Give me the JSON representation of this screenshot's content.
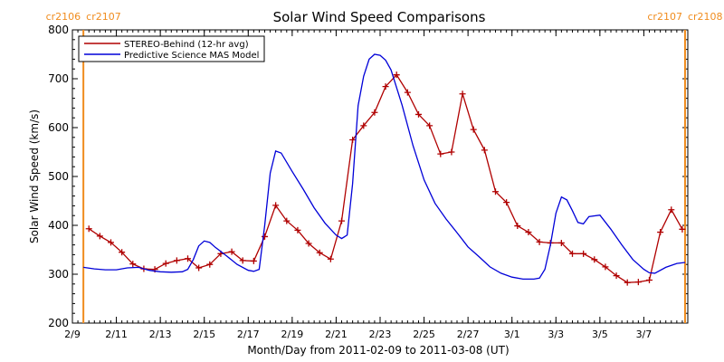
{
  "chart_data": {
    "type": "line",
    "title": "Solar Wind Speed Comparisons",
    "xlabel": "Month/Day from 2011-02-09 to 2011-03-08 (UT)",
    "ylabel": "Solar Wind Speed (km/s)",
    "xlim": [
      "2011-02-09",
      "2011-03-08"
    ],
    "ylim": [
      200,
      800
    ],
    "yticks": [
      200,
      300,
      400,
      500,
      600,
      700,
      800
    ],
    "xtick_labels": [
      {
        "date": "2011-02-09",
        "label": "2/9"
      },
      {
        "date": "2011-02-11",
        "label": "2/11"
      },
      {
        "date": "2011-02-13",
        "label": "2/13"
      },
      {
        "date": "2011-02-15",
        "label": "2/15"
      },
      {
        "date": "2011-02-17",
        "label": "2/17"
      },
      {
        "date": "2011-02-19",
        "label": "2/19"
      },
      {
        "date": "2011-02-21",
        "label": "2/21"
      },
      {
        "date": "2011-02-23",
        "label": "2/23"
      },
      {
        "date": "2011-02-25",
        "label": "2/25"
      },
      {
        "date": "2011-02-27",
        "label": "2/27"
      },
      {
        "date": "2011-03-01",
        "label": "3/1"
      },
      {
        "date": "2011-03-03",
        "label": "3/3"
      },
      {
        "date": "2011-03-05",
        "label": "3/5"
      },
      {
        "date": "2011-03-07",
        "label": "3/7"
      }
    ],
    "legend_position": "top-left",
    "carrington_rotations": [
      {
        "date": "2011-02-09 12:00",
        "left_label": "cr2106",
        "right_label": "cr2107",
        "color": "#f08c1e"
      },
      {
        "date": "2011-03-08 21:00",
        "left_label": "cr2107",
        "right_label": "cr2108",
        "color": "#f08c1e"
      }
    ],
    "series": [
      {
        "name": "STEREO-Behind (12-hr avg)",
        "color": "#b00000",
        "marker": "plus",
        "x": [
          "2011-02-09 18:00",
          "2011-02-10 06:00",
          "2011-02-10 18:00",
          "2011-02-11 06:00",
          "2011-02-11 18:00",
          "2011-02-12 06:00",
          "2011-02-12 18:00",
          "2011-02-13 06:00",
          "2011-02-13 18:00",
          "2011-02-14 06:00",
          "2011-02-14 18:00",
          "2011-02-15 06:00",
          "2011-02-15 18:00",
          "2011-02-16 06:00",
          "2011-02-16 18:00",
          "2011-02-17 06:00",
          "2011-02-17 18:00",
          "2011-02-18 06:00",
          "2011-02-18 18:00",
          "2011-02-19 06:00",
          "2011-02-19 18:00",
          "2011-02-20 06:00",
          "2011-02-20 18:00",
          "2011-02-21 06:00",
          "2011-02-21 18:00",
          "2011-02-22 06:00",
          "2011-02-22 18:00",
          "2011-02-23 06:00",
          "2011-02-23 18:00",
          "2011-02-24 06:00",
          "2011-02-24 18:00",
          "2011-02-25 06:00",
          "2011-02-25 18:00",
          "2011-02-26 06:00",
          "2011-02-26 18:00",
          "2011-02-27 06:00",
          "2011-02-27 18:00",
          "2011-02-28 06:00",
          "2011-02-28 18:00",
          "2011-03-01 06:00",
          "2011-03-01 18:00",
          "2011-03-02 06:00",
          "2011-03-02 18:00",
          "2011-03-03 06:00",
          "2011-03-03 18:00",
          "2011-03-04 06:00",
          "2011-03-04 18:00",
          "2011-03-05 06:00",
          "2011-03-05 18:00",
          "2011-03-06 06:00",
          "2011-03-06 18:00",
          "2011-03-07 06:00",
          "2011-03-07 18:00",
          "2011-03-08 06:00",
          "2011-03-08 18:00"
        ],
        "y": [
          393,
          378,
          365,
          345,
          321,
          311,
          310,
          322,
          328,
          332,
          313,
          320,
          342,
          346,
          328,
          327,
          377,
          441,
          409,
          390,
          363,
          344,
          331,
          409,
          575,
          604,
          631,
          684,
          708,
          672,
          627,
          604,
          546,
          550,
          669,
          596,
          554,
          469,
          447,
          399,
          386,
          366,
          364,
          364,
          342,
          342,
          330,
          315,
          297,
          283,
          284,
          288,
          386,
          432,
          392
        ]
      },
      {
        "name": "Predictive Science MAS Model",
        "color": "#0000d8",
        "marker": "none",
        "x": [
          "2011-02-09 12:00",
          "2011-02-10 00:00",
          "2011-02-10 12:00",
          "2011-02-11 00:00",
          "2011-02-11 12:00",
          "2011-02-12 00:00",
          "2011-02-12 12:00",
          "2011-02-13 00:00",
          "2011-02-13 12:00",
          "2011-02-14 00:00",
          "2011-02-14 06:00",
          "2011-02-14 12:00",
          "2011-02-14 18:00",
          "2011-02-15 00:00",
          "2011-02-15 06:00",
          "2011-02-15 12:00",
          "2011-02-16 00:00",
          "2011-02-16 12:00",
          "2011-02-17 00:00",
          "2011-02-17 06:00",
          "2011-02-17 12:00",
          "2011-02-17 18:00",
          "2011-02-18 00:00",
          "2011-02-18 06:00",
          "2011-02-18 12:00",
          "2011-02-19 00:00",
          "2011-02-19 12:00",
          "2011-02-20 00:00",
          "2011-02-20 12:00",
          "2011-02-21 00:00",
          "2011-02-21 06:00",
          "2011-02-21 12:00",
          "2011-02-21 18:00",
          "2011-02-22 00:00",
          "2011-02-22 06:00",
          "2011-02-22 12:00",
          "2011-02-22 18:00",
          "2011-02-23 00:00",
          "2011-02-23 06:00",
          "2011-02-23 12:00",
          "2011-02-24 00:00",
          "2011-02-24 12:00",
          "2011-02-25 00:00",
          "2011-02-25 12:00",
          "2011-02-26 00:00",
          "2011-02-26 12:00",
          "2011-02-27 00:00",
          "2011-02-27 12:00",
          "2011-02-28 00:00",
          "2011-02-28 12:00",
          "2011-03-01 00:00",
          "2011-03-01 12:00",
          "2011-03-02 00:00",
          "2011-03-02 06:00",
          "2011-03-02 12:00",
          "2011-03-02 18:00",
          "2011-03-03 00:00",
          "2011-03-03 06:00",
          "2011-03-03 12:00",
          "2011-03-03 18:00",
          "2011-03-04 00:00",
          "2011-03-04 06:00",
          "2011-03-04 12:00",
          "2011-03-05 00:00",
          "2011-03-05 12:00",
          "2011-03-06 00:00",
          "2011-03-06 12:00",
          "2011-03-07 00:00",
          "2011-03-07 06:00",
          "2011-03-07 12:00",
          "2011-03-08 00:00",
          "2011-03-08 12:00",
          "2011-03-08 21:00"
        ],
        "y": [
          314,
          311,
          309,
          309,
          313,
          314,
          308,
          305,
          304,
          305,
          310,
          330,
          358,
          368,
          365,
          355,
          338,
          320,
          308,
          306,
          310,
          400,
          507,
          552,
          548,
          510,
          474,
          436,
          404,
          380,
          373,
          380,
          485,
          645,
          705,
          740,
          750,
          748,
          738,
          718,
          646,
          563,
          493,
          445,
          413,
          385,
          356,
          336,
          315,
          302,
          294,
          290,
          290,
          292,
          310,
          360,
          425,
          458,
          452,
          430,
          406,
          403,
          418,
          421,
          392,
          360,
          330,
          310,
          303,
          302,
          314,
          322,
          324
        ]
      }
    ]
  }
}
